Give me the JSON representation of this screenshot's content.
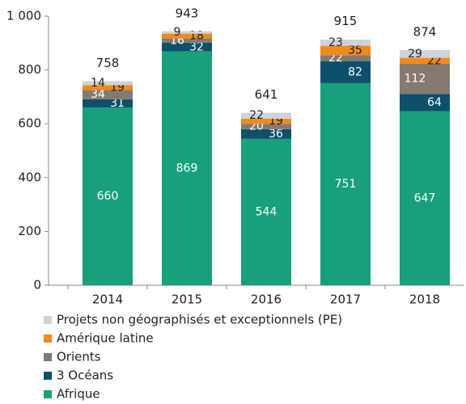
{
  "chart_data": {
    "type": "stacked_bar",
    "categories": [
      "2014",
      "2015",
      "2016",
      "2017",
      "2018"
    ],
    "series": [
      {
        "name": "Afrique",
        "color": "#17a07a",
        "values": [
          660,
          869,
          544,
          751,
          647
        ]
      },
      {
        "name": "3 Océans",
        "color": "#0e4f6c",
        "values": [
          31,
          32,
          36,
          82,
          64
        ]
      },
      {
        "name": "Orients",
        "color": "#857a70",
        "values": [
          34,
          16,
          20,
          22,
          112
        ]
      },
      {
        "name": "Amérique latine",
        "color": "#f08a1c",
        "values": [
          19,
          18,
          19,
          35,
          22
        ]
      },
      {
        "name": "Projets non géographisés et exceptionnels (PE)",
        "color": "#cdd3da",
        "values": [
          14,
          9,
          22,
          23,
          29
        ]
      }
    ],
    "totals": [
      758,
      943,
      641,
      915,
      874
    ],
    "ylim": [
      0,
      1000
    ],
    "yticks": [
      0,
      200,
      400,
      600,
      {
        "value": 800,
        "label": "800"
      },
      {
        "value": 1000,
        "label": "1 000"
      }
    ],
    "grid": false
  }
}
